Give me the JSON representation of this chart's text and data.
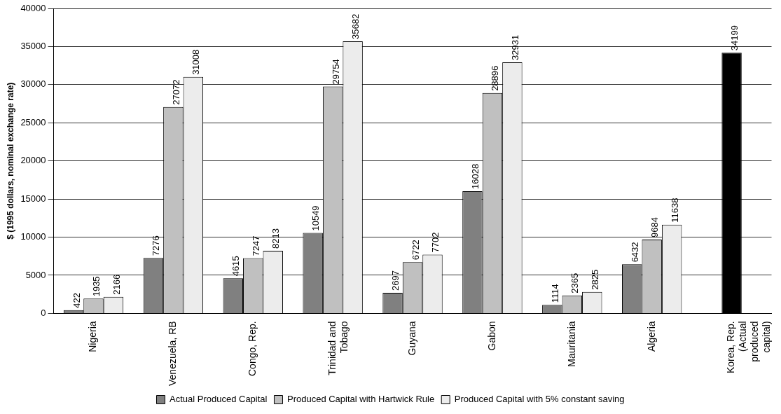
{
  "chart_data": {
    "type": "bar",
    "ylabel": "$ (1995 dollars, nominal exchange rate)",
    "categories": [
      "Nigeria",
      "Venezuela, RB",
      "Congo, Rep.",
      "Trinidad and Tobago",
      "Guyana",
      "Gabon",
      "Mauritania",
      "Algeria",
      "Korea, Rep. (Actual produced capital)"
    ],
    "series": [
      {
        "name": "Actual Produced Capital",
        "color": "#808080",
        "values": [
          422,
          7276,
          4615,
          10549,
          2697,
          16028,
          1114,
          6432,
          null
        ]
      },
      {
        "name": "Produced Capital with Hartwick Rule",
        "color": "#c0c0c0",
        "colors": [
          "#c0c0c0",
          "#c0c0c0",
          "#c0c0c0",
          "#c0c0c0",
          "#c0c0c0",
          "#c0c0c0",
          "#c0c0c0",
          "#c0c0c0",
          "#000000"
        ],
        "values": [
          1935,
          27072,
          7247,
          29754,
          6722,
          28896,
          2365,
          9684,
          34199
        ]
      },
      {
        "name": "Produced Capital with 5% constant saving",
        "color": "#ececec",
        "values": [
          2166,
          31008,
          8213,
          35682,
          7702,
          32931,
          2825,
          11638,
          null
        ]
      }
    ],
    "ylim": [
      0,
      40000
    ],
    "yticks": [
      0,
      5000,
      10000,
      15000,
      20000,
      25000,
      30000,
      35000,
      40000
    ],
    "grid": "y",
    "legend": "bottom",
    "data_labels": true
  }
}
